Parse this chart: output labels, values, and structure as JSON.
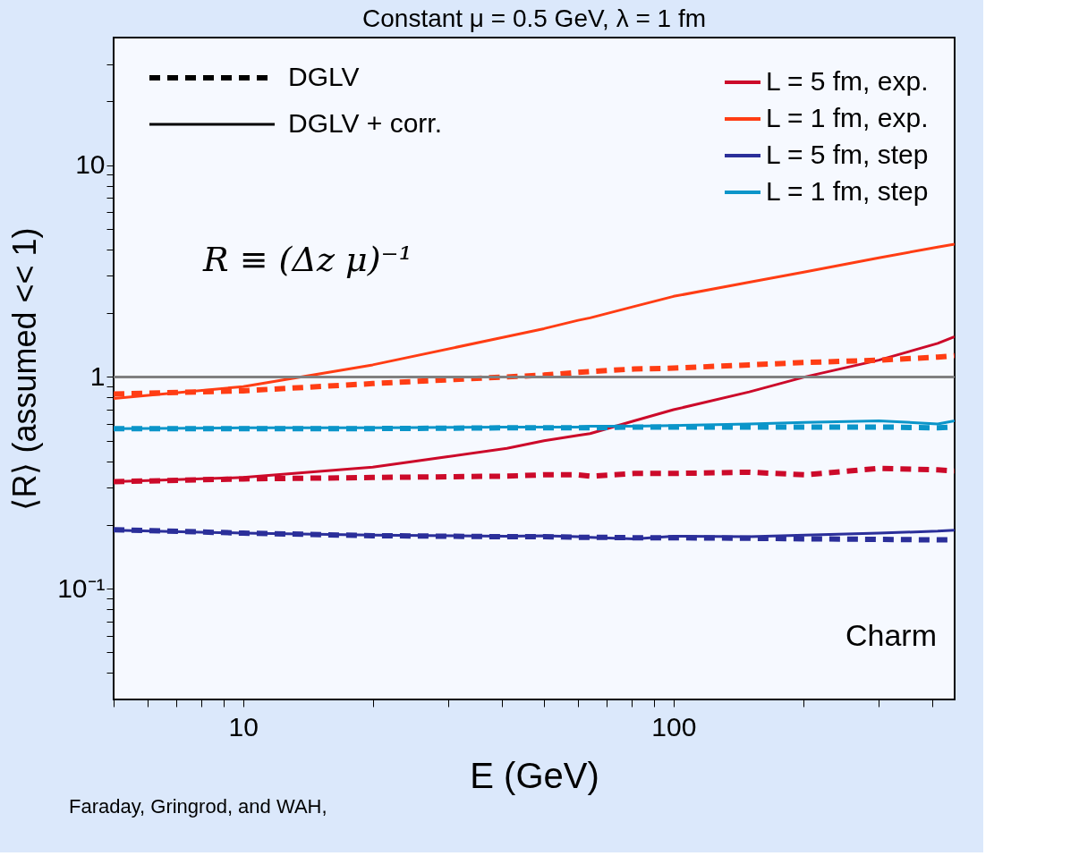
{
  "chart_data": {
    "type": "line",
    "title": "Constant μ = 0.5 GeV, λ = 1 fm",
    "xlabel": "E (GeV)",
    "ylabel": "⟨R⟩ (assumed << 1)",
    "log": "xy",
    "xlim": [
      5,
      450
    ],
    "ylim": [
      0.03,
      40
    ],
    "xticks": [
      {
        "value": 5,
        "label": null
      },
      {
        "value": 6,
        "label": null
      },
      {
        "value": 7,
        "label": null
      },
      {
        "value": 8,
        "label": null
      },
      {
        "value": 9,
        "label": null
      },
      10,
      {
        "value": 20,
        "label": null
      },
      {
        "value": 30,
        "label": null
      },
      {
        "value": 40,
        "label": null
      },
      {
        "value": 50,
        "label": null
      },
      {
        "value": 60,
        "label": null
      },
      {
        "value": 70,
        "label": null
      },
      {
        "value": 80,
        "label": null
      },
      {
        "value": 90,
        "label": null
      },
      100,
      {
        "value": 200,
        "label": null
      },
      {
        "value": 300,
        "label": null
      },
      {
        "value": 400,
        "label": null
      }
    ],
    "yticks": [
      {
        "value": 0.04,
        "label": null
      },
      {
        "value": 0.05,
        "label": null
      },
      {
        "value": 0.06,
        "label": null
      },
      {
        "value": 0.07,
        "label": null
      },
      {
        "value": 0.08,
        "label": null
      },
      {
        "value": 0.09,
        "label": null
      },
      {
        "value": 0.1,
        "label": "10⁻¹"
      },
      {
        "value": 0.2,
        "label": null
      },
      {
        "value": 0.3,
        "label": null
      },
      {
        "value": 0.4,
        "label": null
      },
      {
        "value": 0.5,
        "label": null
      },
      {
        "value": 0.6,
        "label": null
      },
      {
        "value": 0.7,
        "label": null
      },
      {
        "value": 0.8,
        "label": null
      },
      {
        "value": 0.9,
        "label": null
      },
      1,
      {
        "value": 2,
        "label": null
      },
      {
        "value": 3,
        "label": null
      },
      {
        "value": 4,
        "label": null
      },
      {
        "value": 5,
        "label": null
      },
      {
        "value": 6,
        "label": null
      },
      {
        "value": 7,
        "label": null
      },
      {
        "value": 8,
        "label": null
      },
      {
        "value": 9,
        "label": null
      },
      10,
      {
        "value": 20,
        "label": null
      },
      {
        "value": 30,
        "label": null
      }
    ],
    "grid": false,
    "legend": "top",
    "marker": "none",
    "x": [
      5,
      10,
      20,
      41,
      50,
      60,
      64,
      81,
      100,
      150,
      202,
      300,
      411,
      450
    ],
    "series": [
      {
        "name": "L = 5 fm, exp.",
        "color": "#cc0a2a",
        "line_style": "solid",
        "values": [
          0.32,
          0.335,
          0.375,
          0.46,
          0.5,
          0.53,
          0.54,
          0.62,
          0.7,
          0.85,
          1.0,
          1.2,
          1.44,
          1.55
        ]
      },
      {
        "name": "L = 1 fm, exp.",
        "color": "#ff3d14",
        "line_style": "solid",
        "values": [
          0.79,
          0.9,
          1.14,
          1.55,
          1.69,
          1.85,
          1.9,
          2.15,
          2.4,
          2.8,
          3.13,
          3.65,
          4.1,
          4.23
        ]
      },
      {
        "name": "L = 5 fm, step",
        "color": "#2b2f9a",
        "line_style": "solid",
        "values": [
          0.189,
          0.183,
          0.179,
          0.177,
          0.178,
          0.176,
          0.175,
          0.172,
          0.177,
          0.176,
          0.179,
          0.183,
          0.187,
          0.189
        ]
      },
      {
        "name": "L = 1 fm, step",
        "color": "#0b95c9",
        "line_style": "solid",
        "values": [
          0.57,
          0.575,
          0.575,
          0.58,
          0.58,
          0.58,
          0.585,
          0.585,
          0.59,
          0.6,
          0.61,
          0.62,
          0.6,
          0.62
        ]
      },
      {
        "color": "#cc0a2a",
        "line_style": "dashed",
        "values": [
          0.32,
          0.33,
          0.335,
          0.34,
          0.345,
          0.345,
          0.34,
          0.35,
          0.35,
          0.355,
          0.345,
          0.37,
          0.364,
          0.36
        ]
      },
      {
        "color": "#ff3d14",
        "line_style": "dashed",
        "values": [
          0.83,
          0.86,
          0.93,
          1.0,
          1.02,
          1.05,
          1.06,
          1.09,
          1.1,
          1.14,
          1.17,
          1.2,
          1.24,
          1.26
        ]
      },
      {
        "color": "#2b2f9a",
        "line_style": "dashed",
        "values": [
          0.19,
          0.183,
          0.178,
          0.176,
          0.176,
          0.175,
          0.175,
          0.174,
          0.174,
          0.173,
          0.172,
          0.171,
          0.17,
          0.17
        ]
      },
      {
        "color": "#0b95c9",
        "line_style": "dashed",
        "values": [
          0.57,
          0.57,
          0.57,
          0.575,
          0.575,
          0.575,
          0.575,
          0.58,
          0.58,
          0.58,
          0.58,
          0.58,
          0.575,
          0.58
        ]
      }
    ],
    "ref_lines": [
      {
        "axis": "y",
        "value": 1,
        "label": null,
        "color": "#808080"
      }
    ],
    "annotations": [
      "DGLV",
      "DGLV + corr.",
      "R ≡ (Δz μ)⁻¹",
      "Charm",
      "Faraday, Gringrod, and WAH,"
    ]
  }
}
